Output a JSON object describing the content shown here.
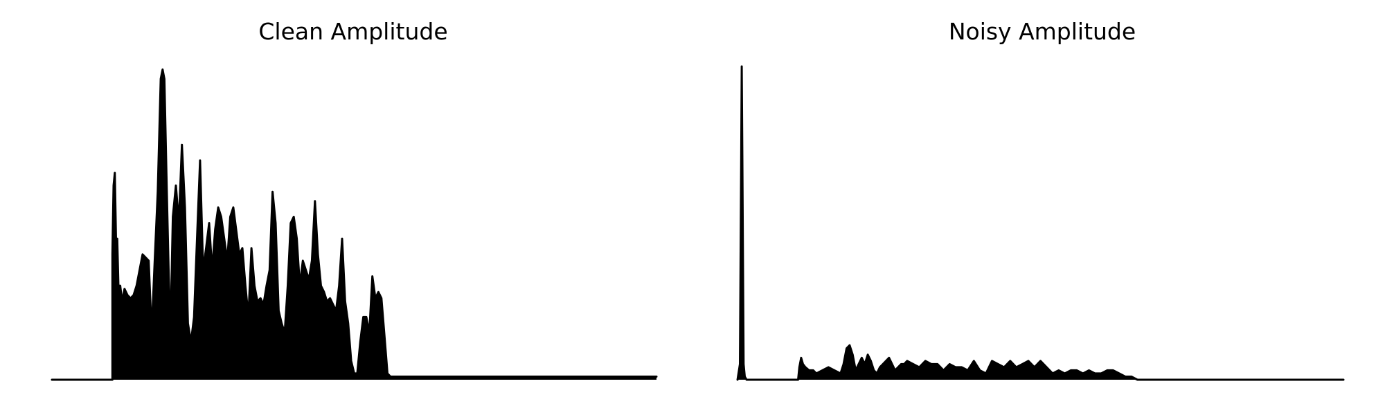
{
  "chart_data": [
    {
      "type": "area",
      "title": "Clean Amplitude",
      "xlabel": "",
      "ylabel": "",
      "axes_visible": false,
      "grid": false,
      "xlim": [
        0,
        1
      ],
      "ylim": [
        0,
        1
      ],
      "color": "#000000",
      "x": [
        0,
        0.05,
        0.1,
        0.1,
        0.102,
        0.104,
        0.106,
        0.108,
        0.11,
        0.113,
        0.116,
        0.12,
        0.125,
        0.13,
        0.135,
        0.14,
        0.15,
        0.16,
        0.165,
        0.17,
        0.175,
        0.18,
        0.183,
        0.186,
        0.19,
        0.193,
        0.196,
        0.2,
        0.205,
        0.21,
        0.215,
        0.22,
        0.225,
        0.23,
        0.235,
        0.24,
        0.245,
        0.25,
        0.255,
        0.26,
        0.265,
        0.27,
        0.275,
        0.28,
        0.285,
        0.29,
        0.295,
        0.3,
        0.31,
        0.315,
        0.32,
        0.325,
        0.33,
        0.335,
        0.34,
        0.345,
        0.35,
        0.355,
        0.36,
        0.365,
        0.37,
        0.375,
        0.38,
        0.385,
        0.39,
        0.395,
        0.4,
        0.405,
        0.41,
        0.415,
        0.42,
        0.425,
        0.43,
        0.435,
        0.44,
        0.445,
        0.45,
        0.455,
        0.46,
        0.47,
        0.475,
        0.48,
        0.485,
        0.49,
        0.495,
        0.5,
        0.505,
        0.51,
        0.515,
        0.52,
        0.525,
        0.53,
        0.535,
        0.54,
        0.545,
        0.55,
        0.555,
        0.56,
        0.565,
        0.57,
        0.575,
        0.58,
        0.585,
        0.59,
        0.595,
        0.6,
        0.605,
        0.61,
        0.615,
        0.62,
        0.625,
        0.63,
        0.635,
        0.64,
        0.645,
        0.65,
        0.655,
        0.66,
        0.665,
        0.67,
        0.675,
        0.68,
        0.685,
        0.69,
        0.695,
        0.7,
        0.72,
        0.8,
        0.9,
        1.0
      ],
      "y": [
        0,
        0,
        0,
        0.4,
        0.62,
        0.66,
        0.45,
        0.45,
        0.3,
        0.3,
        0.25,
        0.29,
        0.27,
        0.26,
        0.27,
        0.3,
        0.4,
        0.38,
        0.15,
        0.38,
        0.6,
        0.96,
        0.99,
        0.96,
        0.6,
        0.35,
        0.15,
        0.52,
        0.62,
        0.5,
        0.75,
        0.55,
        0.18,
        0.12,
        0.2,
        0.45,
        0.7,
        0.35,
        0.42,
        0.5,
        0.35,
        0.48,
        0.55,
        0.52,
        0.45,
        0.38,
        0.52,
        0.55,
        0.4,
        0.42,
        0.3,
        0.2,
        0.42,
        0.3,
        0.25,
        0.26,
        0.24,
        0.3,
        0.35,
        0.6,
        0.5,
        0.22,
        0.18,
        0.15,
        0.3,
        0.5,
        0.52,
        0.45,
        0.3,
        0.38,
        0.35,
        0.32,
        0.38,
        0.57,
        0.4,
        0.3,
        0.28,
        0.25,
        0.26,
        0.22,
        0.3,
        0.45,
        0.25,
        0.18,
        0.06,
        0.02,
        0.02,
        0.12,
        0.2,
        0.2,
        0.15,
        0.33,
        0.26,
        0.28,
        0.26,
        0.14,
        0.02,
        0.01,
        0.01,
        0.01,
        0.01,
        0.01,
        0.01,
        0.01,
        0.01,
        0.01,
        0.01,
        0.01,
        0.01,
        0.01,
        0.01,
        0.01,
        0.01,
        0.01,
        0.01,
        0.01,
        0.01,
        0.01,
        0.01,
        0.01,
        0.01,
        0.01,
        0.01,
        0.01,
        0.01,
        0.01,
        0.01,
        0.01,
        0.01,
        0.01
      ]
    },
    {
      "type": "area",
      "title": "Noisy Amplitude",
      "xlabel": "",
      "ylabel": "",
      "axes_visible": false,
      "grid": false,
      "xlim": [
        0,
        1
      ],
      "ylim": [
        0,
        1
      ],
      "color": "#000000",
      "x": [
        0,
        0.004,
        0.006,
        0.007,
        0.008,
        0.01,
        0.012,
        0.015,
        0.1,
        0.102,
        0.105,
        0.108,
        0.112,
        0.118,
        0.125,
        0.13,
        0.14,
        0.15,
        0.16,
        0.17,
        0.175,
        0.18,
        0.185,
        0.19,
        0.195,
        0.2,
        0.205,
        0.21,
        0.215,
        0.22,
        0.225,
        0.23,
        0.235,
        0.24,
        0.25,
        0.26,
        0.265,
        0.27,
        0.275,
        0.28,
        0.29,
        0.3,
        0.31,
        0.32,
        0.33,
        0.34,
        0.35,
        0.36,
        0.37,
        0.38,
        0.39,
        0.4,
        0.41,
        0.42,
        0.43,
        0.44,
        0.45,
        0.46,
        0.47,
        0.48,
        0.49,
        0.5,
        0.51,
        0.52,
        0.53,
        0.54,
        0.55,
        0.56,
        0.57,
        0.58,
        0.59,
        0.6,
        0.61,
        0.62,
        0.63,
        0.64,
        0.65,
        0.66,
        0.7,
        0.8,
        0.9,
        1.0
      ],
      "y": [
        0,
        0.05,
        0.7,
        1.0,
        0.7,
        0.05,
        0.01,
        0,
        0,
        0.04,
        0.07,
        0.05,
        0.04,
        0.03,
        0.03,
        0.02,
        0.03,
        0.04,
        0.03,
        0.02,
        0.05,
        0.1,
        0.11,
        0.08,
        0.03,
        0.05,
        0.07,
        0.05,
        0.08,
        0.06,
        0.03,
        0.02,
        0.04,
        0.05,
        0.07,
        0.03,
        0.04,
        0.05,
        0.05,
        0.06,
        0.05,
        0.04,
        0.06,
        0.05,
        0.05,
        0.03,
        0.05,
        0.04,
        0.04,
        0.03,
        0.06,
        0.03,
        0.02,
        0.06,
        0.05,
        0.04,
        0.06,
        0.04,
        0.05,
        0.06,
        0.04,
        0.06,
        0.04,
        0.02,
        0.03,
        0.02,
        0.03,
        0.03,
        0.02,
        0.03,
        0.02,
        0.02,
        0.03,
        0.03,
        0.02,
        0.01,
        0.01,
        0,
        0,
        0,
        0,
        0
      ]
    }
  ]
}
